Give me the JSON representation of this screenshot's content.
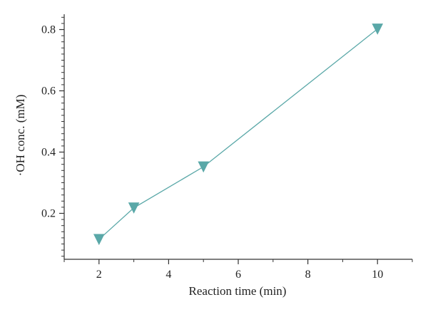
{
  "chart_data": {
    "type": "line",
    "title": "",
    "xlabel": "Reaction time (min)",
    "ylabel": "·OH conc. (mM)",
    "xlim": [
      1,
      11
    ],
    "ylim": [
      0.05,
      0.85
    ],
    "xticks": [
      2,
      4,
      6,
      8,
      10
    ],
    "xtick_labels": [
      "2",
      "4",
      "6",
      "8",
      "10"
    ],
    "yticks": [
      0.2,
      0.4,
      0.6,
      0.8
    ],
    "ytick_labels": [
      "0.2",
      "0.4",
      "0.6",
      "0.8"
    ],
    "grid": false,
    "legend": "none",
    "marker": "triangle-down",
    "color": "#5aa8a8",
    "series": [
      {
        "x": [
          2,
          3,
          5,
          10
        ],
        "y": [
          0.115,
          0.218,
          0.352,
          0.802
        ]
      }
    ]
  }
}
